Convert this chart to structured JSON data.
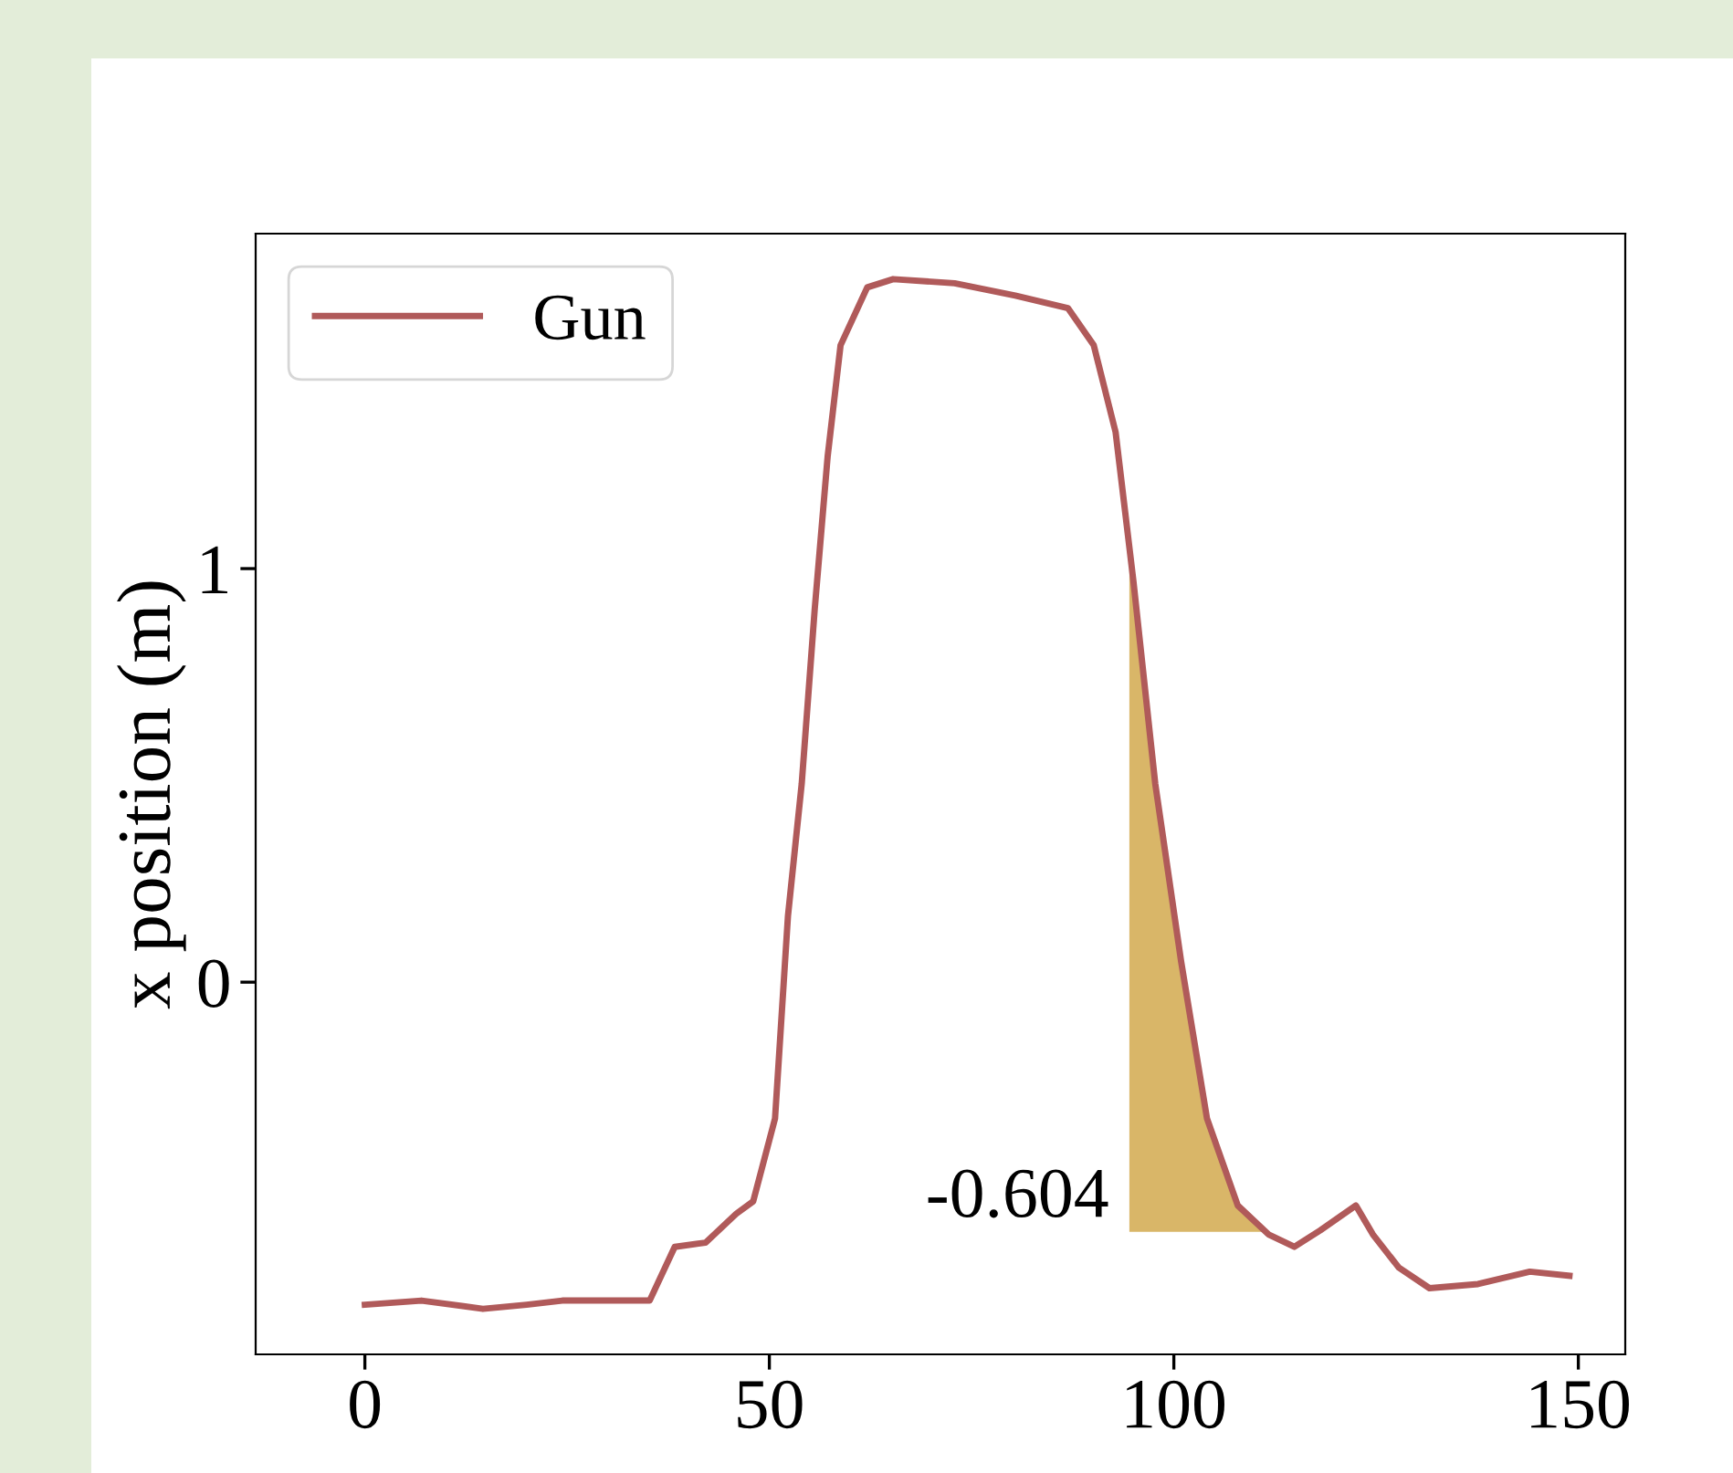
{
  "chart_data": {
    "type": "line",
    "ylabel": "x position (m)",
    "series": [
      {
        "name": "Gun",
        "color": "#b05a5a",
        "x": [
          0,
          7,
          14.6,
          20,
          24.4,
          35.2,
          38.3,
          42.1,
          45.9,
          48,
          50.7,
          52.3,
          54,
          55.6,
          57.2,
          58.8,
          62.1,
          65.3,
          72.9,
          80.4,
          86.9,
          90.1,
          92.8,
          95,
          97.7,
          100.9,
          104.1,
          107.9,
          111.7,
          114.9,
          118.1,
          122.5,
          124.6,
          127.8,
          131.6,
          137.6,
          144,
          148.9
        ],
        "values": [
          -0.78,
          -0.77,
          -0.79,
          -0.78,
          -0.77,
          -0.77,
          -0.64,
          -0.63,
          -0.56,
          -0.53,
          -0.33,
          0.16,
          0.48,
          0.9,
          1.27,
          1.54,
          1.68,
          1.7,
          1.69,
          1.66,
          1.63,
          1.54,
          1.33,
          0.97,
          0.48,
          0.05,
          -0.33,
          -0.54,
          -0.61,
          -0.64,
          -0.6,
          -0.54,
          -0.61,
          -0.69,
          -0.74,
          -0.73,
          -0.7,
          -0.71
        ]
      },
      {
        "type": "area",
        "color": "#d9b668",
        "x": [
          94.5,
          94.5,
          95,
          97.7,
          100.9,
          104.1,
          107.9,
          111
        ],
        "values": [
          -0.604,
          1.0,
          0.97,
          0.48,
          0.05,
          -0.33,
          -0.54,
          -0.604
        ]
      }
    ],
    "annotations": [
      {
        "text": "-0.604",
        "x": 94.5,
        "y": -0.604
      }
    ],
    "xlim": [
      -13.5,
      155.8
    ],
    "ylim": [
      -0.9,
      1.81
    ],
    "xticks": [
      0,
      50,
      100,
      150
    ],
    "yticks": [
      0,
      1
    ],
    "grid": false,
    "legend": "top left"
  }
}
